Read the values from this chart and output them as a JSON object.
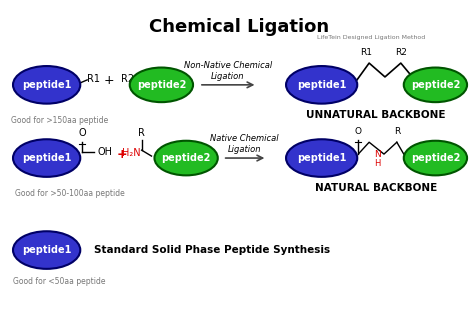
{
  "title": "Chemical Ligation",
  "title_fontsize": 13,
  "title_fontweight": "bold",
  "bg_color": "#ffffff",
  "blue_color": "#3333cc",
  "blue_edge": "#000066",
  "green_color": "#22bb22",
  "green_edge": "#005500",
  "text_color": "#000000",
  "gray_color": "#666666",
  "red_color": "#dd0000",
  "peptide1": "peptide1",
  "peptide2": "peptide2",
  "good1": "Good for >150aa peptide",
  "good2": "Good for >50-100aa peptide",
  "good3": "Good for <50aa peptide",
  "unnatural": "UNNATURAL BACKBONE",
  "natural": "NATURAL BACKBONE",
  "lifetein": "LifeTein Designed Ligation Method",
  "standard": "Standard Solid Phase Peptide Synthesis",
  "non_native": "Non-Native Chemical\nLigation",
  "native": "Native Chemical\nLigation"
}
